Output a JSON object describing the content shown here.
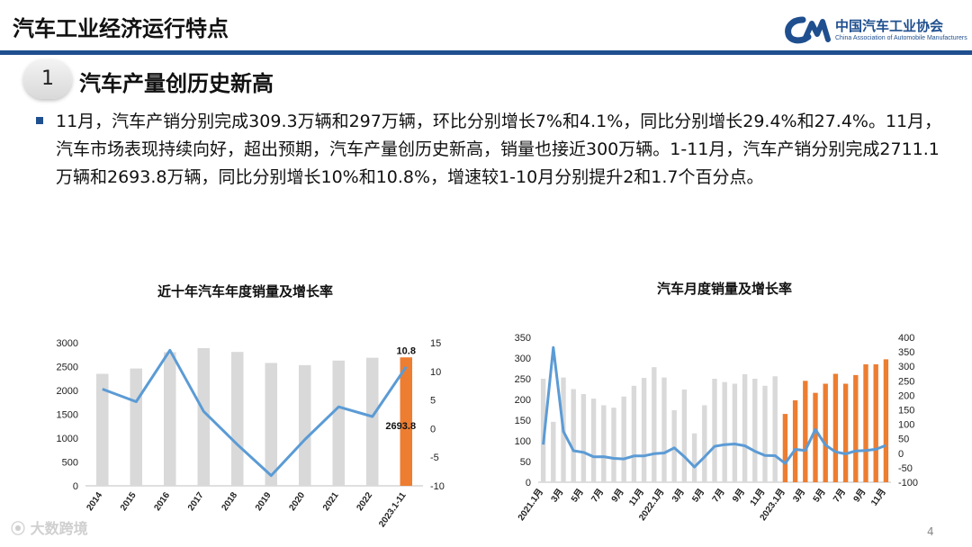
{
  "header": {
    "title": "汽车工业经济运行特点"
  },
  "logo": {
    "name_cn": "中国汽车工业协会",
    "name_en": "China Association of Automobile Manufacturers"
  },
  "section": {
    "number": "1",
    "title": "汽车产量创历史新高"
  },
  "body": {
    "text": "11月，汽车产销分别完成309.3万辆和297万辆，环比分别增长7%和4.1%，同比分别增长29.4%和27.4%。11月，汽车市场表现持续向好，超出预期，汽车产量创历史新高，销量也接近300万辆。1-11月，汽车产销分别完成2711.1万辆和2693.8万辆，同比分别增长10%和10.8%，增速较1-10月分别提升2和1.7个百分点。"
  },
  "footer": {
    "brand": "大数跨境",
    "page": "4"
  },
  "colors": {
    "accent": "#1f4f8f",
    "bar_grey": "#d9d9d9",
    "bar_highlight": "#ed7d31",
    "line": "#5b9bd5"
  },
  "chart_data": [
    {
      "type": "bar",
      "title": "近十年汽车年度销量及增长率",
      "categories": [
        "2014",
        "2015",
        "2016",
        "2017",
        "2018",
        "2019",
        "2020",
        "2021",
        "2022",
        "2023.1-11"
      ],
      "series": [
        {
          "values": [
            2349,
            2460,
            2803,
            2888,
            2808,
            2577,
            2531,
            2627,
            2686,
            2693.8
          ]
        },
        {
          "values": [
            6.9,
            4.7,
            13.7,
            3.0,
            -2.8,
            -8.2,
            -1.9,
            3.8,
            2.1,
            10.8
          ]
        }
      ],
      "highlight_index": 9,
      "data_labels": [
        "2693.8",
        "10.8"
      ],
      "ylim": [
        0,
        3000
      ],
      "yticks": [
        0,
        500,
        1000,
        1500,
        2000,
        2500,
        3000
      ],
      "y2lim": [
        -10,
        15
      ],
      "y2ticks": [
        -10,
        -5,
        0,
        5,
        10,
        15
      ],
      "grid": false
    },
    {
      "type": "bar",
      "title": "汽车月度销量及增长率",
      "categories": [
        "2021.1月",
        "2月",
        "3月",
        "4月",
        "5月",
        "6月",
        "7月",
        "8月",
        "9月",
        "10月",
        "11月",
        "12月",
        "2022.1月",
        "2月",
        "3月",
        "4月",
        "5月",
        "6月",
        "7月",
        "8月",
        "9月",
        "10月",
        "11月",
        "12月",
        "2023.1月",
        "2月",
        "3月",
        "4月",
        "5月",
        "6月",
        "7月",
        "8月",
        "9月",
        "10月",
        "11月"
      ],
      "xtick_labels": [
        "2021.1月",
        "3月",
        "5月",
        "7月",
        "9月",
        "11月",
        "2022.1月",
        "3月",
        "5月",
        "7月",
        "9月",
        "11月",
        "2023.1月",
        "3月",
        "5月",
        "7月",
        "9月",
        "11月"
      ],
      "series": [
        {
          "values": [
            250,
            146,
            253,
            225,
            213,
            202,
            186,
            180,
            207,
            233,
            252,
            278,
            253,
            174,
            224,
            118,
            186,
            250,
            242,
            238,
            261,
            250,
            233,
            256,
            165,
            198,
            245,
            216,
            238,
            262,
            238,
            259,
            285,
            285,
            297
          ]
        },
        {
          "values": [
            30,
            365,
            75,
            8.6,
            3.1,
            -12.4,
            -11.9,
            -17.8,
            -19.6,
            -9.4,
            -9.1,
            -1.6,
            0.9,
            18.7,
            -11.7,
            -47.6,
            -12.6,
            23.8,
            29.7,
            32.1,
            25.7,
            6.9,
            -7.9,
            -8.4,
            -35,
            13.4,
            9.7,
            82.7,
            27.9,
            4.8,
            -2.3,
            8.2,
            9.5,
            13.8,
            27.4
          ]
        }
      ],
      "highlight_from_index": 24,
      "ylim": [
        0,
        350
      ],
      "yticks": [
        0,
        50,
        100,
        150,
        200,
        250,
        300,
        350
      ],
      "y2lim": [
        -100,
        400
      ],
      "y2ticks": [
        -100,
        -50,
        0,
        50,
        100,
        150,
        200,
        250,
        300,
        350,
        400
      ],
      "grid": false
    }
  ]
}
